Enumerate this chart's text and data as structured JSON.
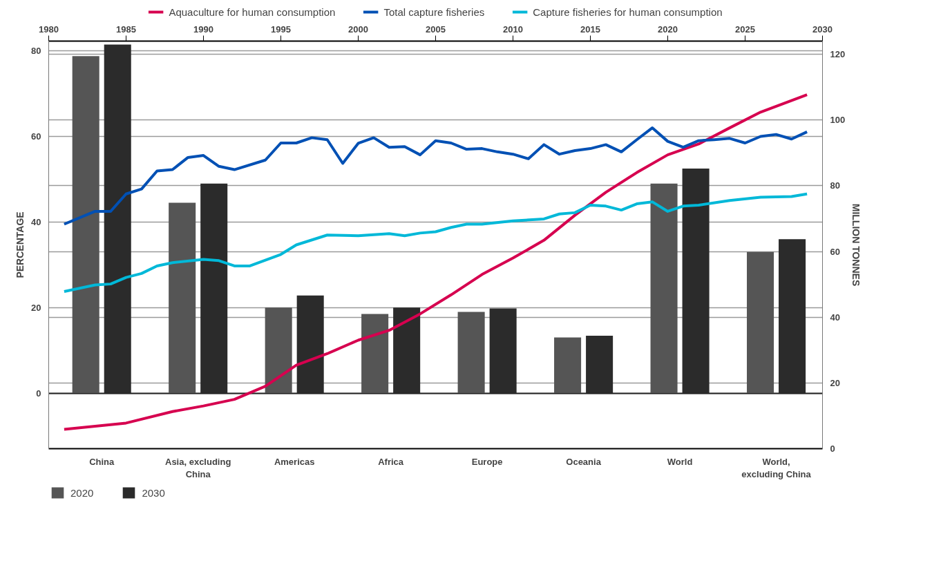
{
  "chart_data": [
    {
      "type": "bar",
      "categories": [
        "China",
        "Asia, excluding China",
        "Americas",
        "Africa",
        "Europe",
        "Oceania",
        "World",
        "World, excluding China"
      ],
      "ylabel": "PERCENTAGE",
      "ylim": [
        -13,
        82.3
      ],
      "yticks": [
        0,
        20,
        40,
        60,
        80
      ],
      "grid": "y",
      "legend": "bottom left",
      "ref_lines": [
        {
          "axis": "y",
          "value": 0,
          "color": "#222222"
        }
      ],
      "series": [
        {
          "name": "2020",
          "color": "#555555",
          "values": [
            78.8,
            44.5,
            20,
            18.5,
            19,
            13,
            49,
            33
          ]
        },
        {
          "name": "2030",
          "color": "#2b2b2b",
          "values": [
            81.5,
            49,
            22.8,
            20,
            19.8,
            13.4,
            52.5,
            36
          ]
        }
      ]
    },
    {
      "type": "line",
      "ylabel": "MILLION TONNES",
      "ylim": [
        0,
        124
      ],
      "yticks": [
        0,
        20,
        40,
        60,
        80,
        100,
        120
      ],
      "xlim": [
        1980,
        2030
      ],
      "xticks": [
        1980,
        1985,
        1990,
        1995,
        2000,
        2005,
        2010,
        2015,
        2020,
        2025,
        2030
      ],
      "grid": "y",
      "legend": "top",
      "series": [
        {
          "name": "Aquaculture for human consumption",
          "color": "#d6004f",
          "x": [
            1981,
            1985,
            1988,
            1990,
            1992,
            1994,
            1996,
            1998,
            2000,
            2002,
            2004,
            2006,
            2008,
            2010,
            2012,
            2014,
            2016,
            2018,
            2020,
            2022,
            2024,
            2026,
            2029
          ],
          "values": [
            5.9,
            7.8,
            11.3,
            13,
            15,
            19,
            25.4,
            28.9,
            33,
            36,
            41,
            46.8,
            53,
            58,
            63.4,
            71,
            78,
            84,
            89.4,
            92.7,
            97.6,
            102.4,
            107.7
          ]
        },
        {
          "name": "Total capture fisheries",
          "color": "#0050b4",
          "x": [
            1981,
            1983,
            1984,
            1985,
            1986,
            1987,
            1988,
            1989,
            1990,
            1991,
            1992,
            1994,
            1995,
            1996,
            1997,
            1998,
            1999,
            2000,
            2001,
            2002,
            2003,
            2004,
            2005,
            2006,
            2007,
            2008,
            2009,
            2010,
            2011,
            2012,
            2013,
            2014,
            2015,
            2016,
            2017,
            2018,
            2019,
            2020,
            2021,
            2022,
            2023,
            2024,
            2025,
            2026,
            2027,
            2028,
            2029
          ],
          "values": [
            68.3,
            72.2,
            72.2,
            77.5,
            79,
            84.5,
            84.9,
            88.6,
            89.2,
            85.9,
            84.9,
            87.8,
            93,
            93,
            94.6,
            94,
            86.8,
            92.9,
            94.6,
            91.7,
            91.9,
            89.4,
            93.7,
            93,
            91.1,
            91.3,
            90.3,
            89.6,
            88.2,
            92.5,
            89.6,
            90.7,
            91.3,
            92.5,
            90.3,
            94,
            97.6,
            93.5,
            91.7,
            93.7,
            94,
            94.4,
            93,
            95,
            95.6,
            94.2,
            96.4
          ]
        },
        {
          "name": "Capture fisheries for human consumption",
          "color": "#00b8d8",
          "x": [
            1981,
            1983,
            1984,
            1985,
            1986,
            1987,
            1988,
            1990,
            1991,
            1992,
            1993,
            1995,
            1996,
            1998,
            2000,
            2002,
            2003,
            2004,
            2005,
            2006,
            2007,
            2008,
            2010,
            2012,
            2013,
            2014,
            2015,
            2016,
            2017,
            2018,
            2019,
            2020,
            2021,
            2022,
            2024,
            2026,
            2028,
            2029
          ],
          "values": [
            47.8,
            49.8,
            50.1,
            52.1,
            53.3,
            55.6,
            56.6,
            57.6,
            57.2,
            55.6,
            55.6,
            59.1,
            62,
            65,
            64.8,
            65.4,
            64.8,
            65.6,
            66,
            67.3,
            68.3,
            68.3,
            69.3,
            69.9,
            71.4,
            71.8,
            74.1,
            73.8,
            72.6,
            74.5,
            75.1,
            72.2,
            73.8,
            74.1,
            75.5,
            76.5,
            76.7,
            77.5
          ]
        }
      ]
    }
  ]
}
